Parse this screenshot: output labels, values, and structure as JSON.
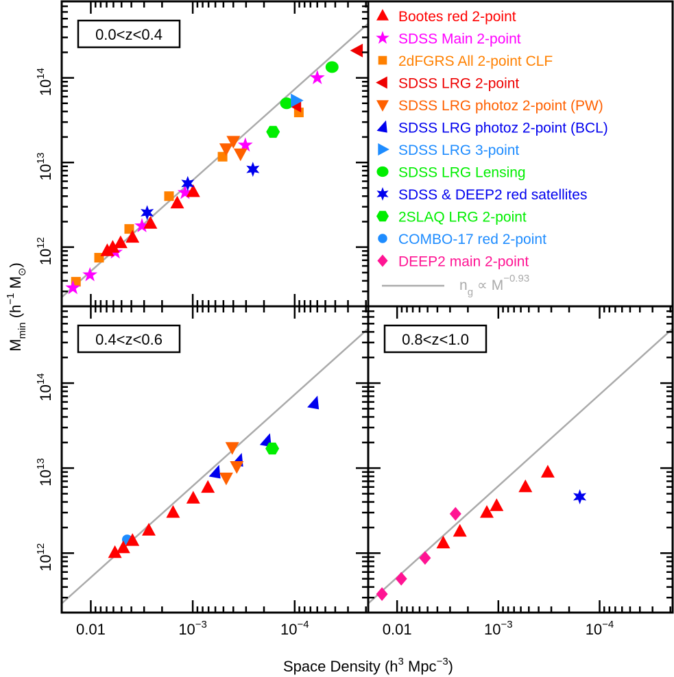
{
  "chart_data": {
    "type": "scatter",
    "xlabel": "Space Density (h",
    "xlabel_sup": "3",
    "xlabel_mid": " Mpc",
    "xlabel_sup2": "−3",
    "xlabel_end": ")",
    "ylabel": "M",
    "ylabel_sub": "min",
    "ylabel_mid": " (h",
    "ylabel_sup": "−1",
    "ylabel_mid2": " M",
    "ylabel_sub2": "⊙",
    "ylabel_end": ")",
    "x_scale": "log",
    "x_reversed": true,
    "y_scale": "log",
    "xlim": [
      0.0193,
      1.9e-05
    ],
    "ylim": [
      200000000000.0,
      800000000000000.0
    ],
    "grid": false,
    "legend_placement": "top-right panel",
    "x_ticks": [
      {
        "value": 0.01,
        "base": "0.01",
        "sup": ""
      },
      {
        "value": 0.001,
        "base": "10",
        "sup": "−3"
      },
      {
        "value": 0.0001,
        "base": "10",
        "sup": "−4"
      }
    ],
    "y_ticks": [
      {
        "value": 1000000000000.0,
        "base": "10",
        "sup": "12"
      },
      {
        "value": 10000000000000.0,
        "base": "10",
        "sup": "13"
      },
      {
        "value": 100000000000000.0,
        "base": "10",
        "sup": "14"
      }
    ],
    "fit_line": {
      "color": "#aaaaaa",
      "exponent": -0.93,
      "passes_through": [
        0.0195,
        253000000000.0
      ],
      "label": {
        "base": "n",
        "sub": "g",
        "mid": " ∝ M",
        "sup": "−0.93"
      }
    },
    "series": [
      {
        "name": "Bootes red 2-point",
        "color": "#ff0000",
        "marker": "triangle-up"
      },
      {
        "name": "SDSS Main 2-point",
        "color": "#ff00ff",
        "marker": "star5"
      },
      {
        "name": "2dFGRS All 2-point CLF",
        "color": "#ff8000",
        "marker": "square"
      },
      {
        "name": "SDSS LRG 2-point",
        "color": "#ee0000",
        "marker": "triangle-left"
      },
      {
        "name": "SDSS LRG photoz 2-point (PW)",
        "color": "#ff6000",
        "marker": "triangle-down"
      },
      {
        "name": "SDSS LRG photoz 2-point (BCL)",
        "color": "#0000ee",
        "marker": "triangle-tilt"
      },
      {
        "name": "SDSS LRG 3-point",
        "color": "#1e8cff",
        "marker": "triangle-right"
      },
      {
        "name": "SDSS LRG Lensing",
        "color": "#00ee00",
        "marker": "circle"
      },
      {
        "name": "SDSS & DEEP2 red satellites",
        "color": "#0000ee",
        "marker": "star6"
      },
      {
        "name": "2SLAQ LRG 2-point",
        "color": "#00ee00",
        "marker": "hexagon"
      },
      {
        "name": "COMBO-17 red 2-point",
        "color": "#1e8cff",
        "marker": "circle-small"
      },
      {
        "name": "DEEP2 main 2-point",
        "color": "#ff1493",
        "marker": "diamond"
      }
    ],
    "panels": [
      {
        "label": "0.0<z<0.4",
        "data": [
          {
            "series": 2,
            "points": [
              [
                0.014,
                390000000000.0
              ],
              [
                0.0083,
                750000000000.0
              ],
              [
                0.0042,
                1640000000000.0
              ],
              [
                0.00171,
                4000000000000.0
              ],
              [
                0.00051,
                11700000000000.0
              ],
              [
                9.1e-05,
                39000000000000.0
              ]
            ]
          },
          {
            "series": 1,
            "points": [
              [
                0.015,
                330000000000.0
              ],
              [
                0.0102,
                470000000000.0
              ],
              [
                0.00575,
                870000000000.0
              ],
              [
                0.00315,
                1780000000000.0
              ],
              [
                0.00119,
                4400000000000.0
              ],
              [
                0.000305,
                16000000000000.0
              ],
              [
                6e-05,
                100000000000000.0
              ]
            ]
          },
          {
            "series": 0,
            "points": [
              [
                0.0069,
                900000000000.0
              ],
              [
                0.0061,
                990000000000.0
              ],
              [
                0.0051,
                1120000000000.0
              ],
              [
                0.0039,
                1300000000000.0
              ],
              [
                0.0026,
                1900000000000.0
              ],
              [
                0.00142,
                3300000000000.0
              ],
              [
                0.00099,
                4500000000000.0
              ]
            ]
          },
          {
            "series": 4,
            "points": [
              [
                0.00047,
                14600000000000.0
              ],
              [
                0.0004,
                17900000000000.0
              ],
              [
                0.00034,
                12700000000000.0
              ]
            ]
          },
          {
            "series": 8,
            "points": [
              [
                0.0028,
                2550000000000.0
              ],
              [
                0.00112,
                5650000000000.0
              ],
              [
                0.000257,
                8300000000000.0
              ]
            ]
          },
          {
            "series": 3,
            "points": [
              [
                9.7e-05,
                47000000000000.0
              ],
              [
                2.41e-05,
                210000000000000.0
              ]
            ]
          },
          {
            "series": 9,
            "points": [
              [
                0.000163,
                23000000000000.0
              ]
            ]
          },
          {
            "series": 7,
            "points": [
              [
                0.00012,
                50000000000000.0
              ],
              [
                4.3e-05,
                134000000000000.0
              ]
            ]
          },
          {
            "series": 6,
            "points": [
              [
                9.7e-05,
                54000000000000.0
              ]
            ]
          }
        ]
      },
      {
        "label": "0.4<z<0.6",
        "data": [
          {
            "series": 10,
            "points": [
              [
                0.0044,
                1440000000000.0
              ]
            ]
          },
          {
            "series": 0,
            "points": [
              [
                0.0058,
                1010000000000.0
              ],
              [
                0.0048,
                1150000000000.0
              ],
              [
                0.0039,
                1400000000000.0
              ],
              [
                0.0027,
                1850000000000.0
              ],
              [
                0.00156,
                3000000000000.0
              ],
              [
                0.00099,
                4400000000000.0
              ],
              [
                0.00071,
                5900000000000.0
              ]
            ]
          },
          {
            "series": 5,
            "points": [
              [
                0.0006,
                8900000000000.0
              ],
              [
                0.00036,
                12300000000000.0
              ],
              [
                0.00019,
                21000000000000.0
              ],
              [
                6.5e-05,
                58000000000000.0
              ]
            ]
          },
          {
            "series": 4,
            "points": [
              [
                0.00041,
                17600000000000.0
              ],
              [
                0.00047,
                7700000000000.0
              ],
              [
                0.00037,
                10500000000000.0
              ]
            ]
          },
          {
            "series": 9,
            "points": [
              [
                0.000166,
                17000000000000.0
              ]
            ]
          }
        ]
      },
      {
        "label": "0.8<z<1.0",
        "data": [
          {
            "series": 11,
            "points": [
              [
                0.0141,
                330000000000.0
              ],
              [
                0.0091,
                500000000000.0
              ],
              [
                0.0053,
                880000000000.0
              ],
              [
                0.00265,
                2900000000000.0
              ]
            ]
          },
          {
            "series": 0,
            "points": [
              [
                0.0035,
                1310000000000.0
              ],
              [
                0.0024,
                1800000000000.0
              ],
              [
                0.0013,
                3000000000000.0
              ],
              [
                0.00104,
                3600000000000.0
              ],
              [
                0.00054,
                6000000000000.0
              ],
              [
                0.000325,
                8900000000000.0
              ]
            ]
          },
          {
            "series": 8,
            "points": [
              [
                0.000157,
                4600000000000.0
              ]
            ]
          }
        ]
      }
    ]
  }
}
